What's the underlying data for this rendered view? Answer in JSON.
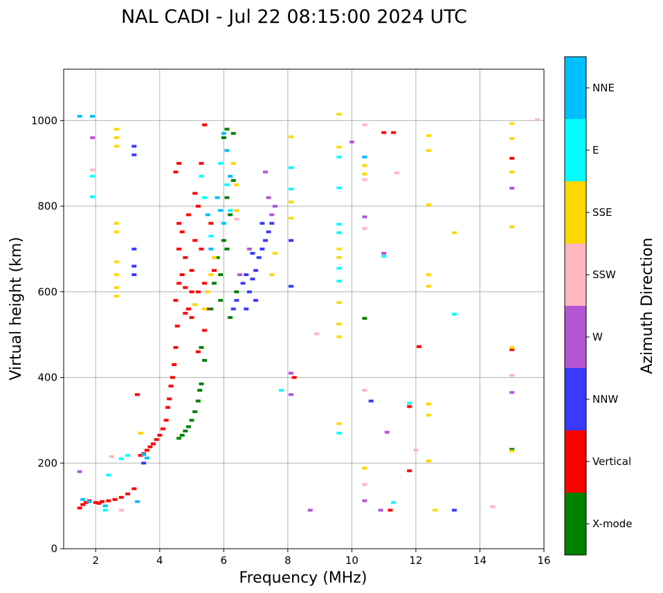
{
  "chart_data": {
    "type": "scatter",
    "title": "NAL CADI - Jul 22 08:15:00 2024 UTC",
    "xlabel": "Frequency (MHz)",
    "ylabel": "Virtual height (km)",
    "xlim": [
      1,
      16
    ],
    "ylim": [
      0,
      1120
    ],
    "xticks": [
      2,
      4,
      6,
      8,
      10,
      12,
      14,
      16
    ],
    "yticks": [
      0,
      200,
      400,
      600,
      800,
      1000
    ],
    "grid": true,
    "colorbar": {
      "label": "Azimuth Direction",
      "categories": [
        {
          "name": "X-mode",
          "color": "#008000"
        },
        {
          "name": "Vertical",
          "color": "#ff0000"
        },
        {
          "name": "NNW",
          "color": "#3a3aff"
        },
        {
          "name": "W",
          "color": "#b455d6"
        },
        {
          "name": "SSW",
          "color": "#ffb6c1"
        },
        {
          "name": "SSE",
          "color": "#ffd700"
        },
        {
          "name": "E",
          "color": "#00ffff"
        },
        {
          "name": "NNE",
          "color": "#00bfff"
        }
      ]
    },
    "series": [
      {
        "name": "Vertical",
        "color": "#ff0000",
        "points": [
          [
            1.5,
            95
          ],
          [
            1.6,
            103
          ],
          [
            1.7,
            108
          ],
          [
            1.8,
            112
          ],
          [
            2.0,
            108
          ],
          [
            2.1,
            106
          ],
          [
            2.2,
            110
          ],
          [
            2.4,
            112
          ],
          [
            2.6,
            115
          ],
          [
            2.8,
            120
          ],
          [
            3.0,
            128
          ],
          [
            3.2,
            140
          ],
          [
            3.3,
            360
          ],
          [
            3.4,
            218
          ],
          [
            3.5,
            222
          ],
          [
            3.6,
            230
          ],
          [
            3.7,
            238
          ],
          [
            3.8,
            245
          ],
          [
            3.9,
            255
          ],
          [
            4.0,
            265
          ],
          [
            4.1,
            280
          ],
          [
            4.2,
            300
          ],
          [
            4.25,
            330
          ],
          [
            4.3,
            350
          ],
          [
            4.35,
            380
          ],
          [
            4.4,
            400
          ],
          [
            4.45,
            430
          ],
          [
            4.5,
            470
          ],
          [
            4.55,
            520
          ],
          [
            4.5,
            580
          ],
          [
            4.6,
            620
          ],
          [
            4.6,
            700
          ],
          [
            4.7,
            740
          ],
          [
            4.8,
            680
          ],
          [
            4.7,
            640
          ],
          [
            4.8,
            610
          ],
          [
            4.9,
            560
          ],
          [
            5.0,
            540
          ],
          [
            5.0,
            650
          ],
          [
            5.1,
            720
          ],
          [
            5.2,
            600
          ],
          [
            5.2,
            800
          ],
          [
            5.3,
            700
          ],
          [
            5.3,
            900
          ],
          [
            5.4,
            990
          ],
          [
            5.4,
            510
          ],
          [
            5.5,
            560
          ],
          [
            4.5,
            880
          ],
          [
            4.6,
            900
          ],
          [
            4.9,
            780
          ],
          [
            5.1,
            830
          ],
          [
            5.4,
            620
          ],
          [
            5.6,
            760
          ],
          [
            5.7,
            650
          ],
          [
            5.2,
            460
          ],
          [
            4.6,
            760
          ],
          [
            5.0,
            600
          ],
          [
            4.8,
            550
          ],
          [
            8.2,
            400
          ],
          [
            11.0,
            972
          ],
          [
            11.3,
            972
          ],
          [
            11.2,
            90
          ],
          [
            11.8,
            332
          ],
          [
            11.8,
            182
          ],
          [
            12.1,
            472
          ],
          [
            15.0,
            465
          ],
          [
            15.0,
            912
          ]
        ]
      },
      {
        "name": "X-mode",
        "color": "#008000",
        "points": [
          [
            4.6,
            258
          ],
          [
            4.7,
            265
          ],
          [
            4.8,
            275
          ],
          [
            4.9,
            285
          ],
          [
            5.0,
            300
          ],
          [
            5.1,
            320
          ],
          [
            5.2,
            345
          ],
          [
            5.25,
            370
          ],
          [
            5.3,
            385
          ],
          [
            5.4,
            440
          ],
          [
            5.3,
            470
          ],
          [
            5.6,
            560
          ],
          [
            5.7,
            620
          ],
          [
            5.8,
            680
          ],
          [
            5.9,
            640
          ],
          [
            6.0,
            720
          ],
          [
            6.1,
            700
          ],
          [
            6.2,
            780
          ],
          [
            6.3,
            860
          ],
          [
            6.0,
            960
          ],
          [
            6.1,
            980
          ],
          [
            6.3,
            970
          ],
          [
            5.9,
            580
          ],
          [
            6.2,
            540
          ],
          [
            6.4,
            600
          ],
          [
            6.1,
            820
          ],
          [
            10.4,
            538
          ],
          [
            15.0,
            232
          ]
        ]
      },
      {
        "name": "NNW",
        "color": "#3a3aff",
        "points": [
          [
            3.2,
            940
          ],
          [
            3.2,
            920
          ],
          [
            3.2,
            700
          ],
          [
            3.2,
            660
          ],
          [
            3.2,
            640
          ],
          [
            3.5,
            200
          ],
          [
            6.6,
            620
          ],
          [
            6.7,
            640
          ],
          [
            6.8,
            600
          ],
          [
            6.9,
            630
          ],
          [
            7.0,
            650
          ],
          [
            7.1,
            680
          ],
          [
            7.2,
            700
          ],
          [
            7.3,
            720
          ],
          [
            7.4,
            740
          ],
          [
            7.0,
            580
          ],
          [
            7.2,
            760
          ],
          [
            6.9,
            690
          ],
          [
            7.5,
            760
          ],
          [
            6.7,
            560
          ],
          [
            6.3,
            560
          ],
          [
            6.4,
            580
          ],
          [
            8.1,
            720
          ],
          [
            8.1,
            613
          ],
          [
            10.6,
            345
          ],
          [
            13.2,
            90
          ]
        ]
      },
      {
        "name": "W",
        "color": "#b455d6",
        "points": [
          [
            1.5,
            180
          ],
          [
            1.9,
            960
          ],
          [
            7.3,
            880
          ],
          [
            7.4,
            820
          ],
          [
            7.6,
            800
          ],
          [
            7.5,
            780
          ],
          [
            6.5,
            640
          ],
          [
            6.8,
            700
          ],
          [
            8.1,
            410
          ],
          [
            8.1,
            360
          ],
          [
            8.7,
            90
          ],
          [
            10.0,
            950
          ],
          [
            10.4,
            775
          ],
          [
            10.9,
            90
          ],
          [
            11.0,
            690
          ],
          [
            11.1,
            272
          ],
          [
            15.0,
            842
          ],
          [
            15.0,
            365
          ],
          [
            10.4,
            112
          ]
        ]
      },
      {
        "name": "SSW",
        "color": "#ffb6c1",
        "points": [
          [
            1.9,
            885
          ],
          [
            2.5,
            215
          ],
          [
            2.8,
            90
          ],
          [
            6.4,
            770
          ],
          [
            8.9,
            502
          ],
          [
            10.4,
            990
          ],
          [
            10.4,
            862
          ],
          [
            10.4,
            748
          ],
          [
            10.4,
            370
          ],
          [
            10.4,
            150
          ],
          [
            11.4,
            878
          ],
          [
            12.0,
            230
          ],
          [
            14.4,
            98
          ],
          [
            15.0,
            405
          ],
          [
            15.8,
            1002
          ]
        ]
      },
      {
        "name": "SSE",
        "color": "#ffd700",
        "points": [
          [
            2.65,
            980
          ],
          [
            2.65,
            960
          ],
          [
            2.65,
            940
          ],
          [
            2.65,
            760
          ],
          [
            2.65,
            740
          ],
          [
            2.65,
            670
          ],
          [
            2.65,
            640
          ],
          [
            2.65,
            610
          ],
          [
            2.65,
            590
          ],
          [
            3.4,
            270
          ],
          [
            5.1,
            570
          ],
          [
            5.4,
            560
          ],
          [
            5.5,
            600
          ],
          [
            5.6,
            640
          ],
          [
            5.7,
            680
          ],
          [
            6.3,
            900
          ],
          [
            6.4,
            850
          ],
          [
            6.4,
            790
          ],
          [
            7.5,
            640
          ],
          [
            7.6,
            690
          ],
          [
            8.1,
            962
          ],
          [
            8.1,
            810
          ],
          [
            8.1,
            772
          ],
          [
            9.6,
            1015
          ],
          [
            9.6,
            938
          ],
          [
            9.6,
            700
          ],
          [
            9.6,
            680
          ],
          [
            9.6,
            575
          ],
          [
            9.6,
            525
          ],
          [
            9.6,
            495
          ],
          [
            9.6,
            292
          ],
          [
            10.4,
            895
          ],
          [
            10.4,
            875
          ],
          [
            10.4,
            188
          ],
          [
            12.4,
            965
          ],
          [
            12.4,
            930
          ],
          [
            12.4,
            803
          ],
          [
            12.4,
            640
          ],
          [
            12.4,
            613
          ],
          [
            12.4,
            338
          ],
          [
            12.4,
            312
          ],
          [
            12.4,
            205
          ],
          [
            12.6,
            90
          ],
          [
            13.2,
            738
          ],
          [
            15.0,
            993
          ],
          [
            15.0,
            958
          ],
          [
            15.0,
            880
          ],
          [
            15.0,
            752
          ],
          [
            15.0,
            470
          ],
          [
            15.0,
            228
          ]
        ]
      },
      {
        "name": "E",
        "color": "#00ffff",
        "points": [
          [
            1.9,
            870
          ],
          [
            1.9,
            822
          ],
          [
            2.3,
            90
          ],
          [
            2.4,
            172
          ],
          [
            2.8,
            210
          ],
          [
            3.0,
            218
          ],
          [
            5.3,
            870
          ],
          [
            5.4,
            820
          ],
          [
            5.9,
            900
          ],
          [
            6.1,
            850
          ],
          [
            6.2,
            790
          ],
          [
            5.6,
            730
          ],
          [
            7.8,
            370
          ],
          [
            8.1,
            890
          ],
          [
            8.1,
            840
          ],
          [
            9.6,
            915
          ],
          [
            9.6,
            843
          ],
          [
            9.6,
            758
          ],
          [
            9.6,
            738
          ],
          [
            9.6,
            655
          ],
          [
            9.6,
            625
          ],
          [
            9.6,
            270
          ],
          [
            11.0,
            683
          ],
          [
            11.3,
            108
          ],
          [
            11.8,
            340
          ],
          [
            13.2,
            548
          ]
        ]
      },
      {
        "name": "NNE",
        "color": "#00bfff",
        "points": [
          [
            1.5,
            1010
          ],
          [
            1.6,
            115
          ],
          [
            1.8,
            110
          ],
          [
            1.9,
            1010
          ],
          [
            2.3,
            100
          ],
          [
            3.3,
            110
          ],
          [
            3.5,
            220
          ],
          [
            3.6,
            212
          ],
          [
            5.9,
            790
          ],
          [
            6.0,
            760
          ],
          [
            6.0,
            970
          ],
          [
            6.1,
            930
          ],
          [
            6.2,
            870
          ],
          [
            5.5,
            780
          ],
          [
            5.6,
            700
          ],
          [
            5.8,
            820
          ],
          [
            10.4,
            915
          ]
        ]
      }
    ]
  }
}
